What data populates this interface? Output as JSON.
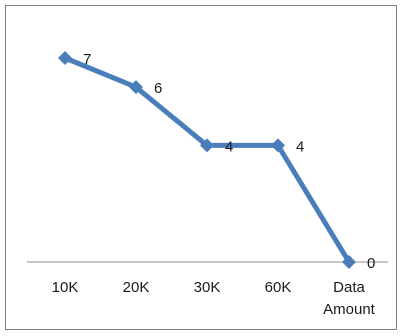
{
  "chart_data": {
    "type": "line",
    "title": "",
    "xlabel": "",
    "ylabel": "",
    "categories": [
      "10K",
      "20K",
      "30K",
      "60K",
      "Data Amount"
    ],
    "category_lines": [
      [
        "10K"
      ],
      [
        "20K"
      ],
      [
        "30K"
      ],
      [
        "60K"
      ],
      [
        "Data",
        "Amount"
      ]
    ],
    "series": [
      {
        "values": [
          7,
          6,
          4,
          4,
          0
        ],
        "labels": [
          "7",
          "6",
          "4",
          "4",
          "0"
        ],
        "color": "#4a7ebb",
        "marker": "diamond"
      }
    ],
    "ylim": [
      0,
      7
    ],
    "grid": false,
    "legend": "none",
    "axis_color": "#8c8c8c",
    "border_color": "#7f7f7f"
  }
}
